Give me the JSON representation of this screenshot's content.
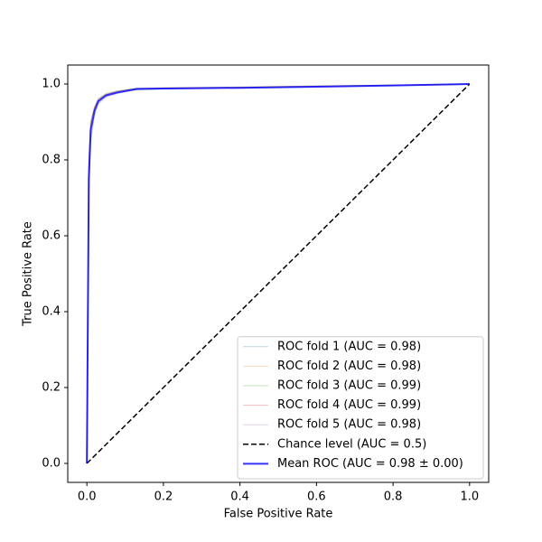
{
  "chart_data": {
    "type": "line",
    "x_label": "False Positive Rate",
    "y_label": "True Positive Rate",
    "x": [
      0,
      0.005,
      0.01,
      0.02,
      0.03,
      0.05,
      0.08,
      0.13,
      0.2,
      0.4,
      0.6,
      0.8,
      1.0
    ],
    "xlim": [
      -0.05,
      1.05
    ],
    "ylim": [
      -0.05,
      1.05
    ],
    "xticks": [
      {
        "value": 0,
        "label": "0.0"
      },
      0.2,
      0.4,
      0.6,
      0.8,
      {
        "value": 1,
        "label": "1.0"
      }
    ],
    "yticks": [
      {
        "value": 0,
        "label": "0.0"
      },
      0.2,
      0.4,
      0.6,
      0.8,
      {
        "value": 1,
        "label": "1.0"
      }
    ],
    "legend": "lower right",
    "series": [
      {
        "name": "ROC fold 1 (AUC = 0.98)",
        "color": "#1f77b4",
        "alpha": 0.3,
        "width": 1,
        "values": [
          0,
          0.72,
          0.86,
          0.92,
          0.95,
          0.968,
          0.976,
          0.985,
          0.987,
          0.99,
          0.993,
          0.996,
          1
        ]
      },
      {
        "name": "ROC fold 2 (AUC = 0.98)",
        "color": "#ff7f0e",
        "alpha": 0.3,
        "width": 1,
        "values": [
          0,
          0.78,
          0.89,
          0.935,
          0.96,
          0.972,
          0.98,
          0.988,
          0.989,
          0.991,
          0.994,
          0.997,
          1
        ]
      },
      {
        "name": "ROC fold 3 (AUC = 0.99)",
        "color": "#2ca02c",
        "alpha": 0.3,
        "width": 1,
        "values": [
          0,
          0.8,
          0.9,
          0.94,
          0.962,
          0.975,
          0.982,
          0.989,
          0.99,
          0.992,
          0.995,
          0.997,
          1
        ]
      },
      {
        "name": "ROC fold 4 (AUC = 0.99)",
        "color": "#d62728",
        "alpha": 0.3,
        "width": 1,
        "values": [
          0,
          0.79,
          0.9,
          0.94,
          0.96,
          0.973,
          0.981,
          0.988,
          0.99,
          0.992,
          0.995,
          0.997,
          1
        ]
      },
      {
        "name": "ROC fold 5 (AUC = 0.98)",
        "color": "#9467bd",
        "alpha": 0.3,
        "width": 1,
        "values": [
          0,
          0.7,
          0.85,
          0.92,
          0.948,
          0.965,
          0.975,
          0.985,
          0.987,
          0.99,
          0.993,
          0.996,
          1
        ]
      },
      {
        "name": "Chance level (AUC = 0.5)",
        "color": "black",
        "alpha": 1,
        "width": 1.5,
        "dashed": true,
        "x": [
          0,
          1
        ],
        "values": [
          0,
          1
        ]
      },
      {
        "name": "Mean ROC (AUC = 0.98 ± 0.00)",
        "color": "blue",
        "alpha": 0.8,
        "width": 2,
        "values": [
          0,
          0.75,
          0.88,
          0.93,
          0.955,
          0.97,
          0.978,
          0.987,
          0.988,
          0.99,
          0.993,
          0.996,
          1
        ]
      }
    ]
  }
}
